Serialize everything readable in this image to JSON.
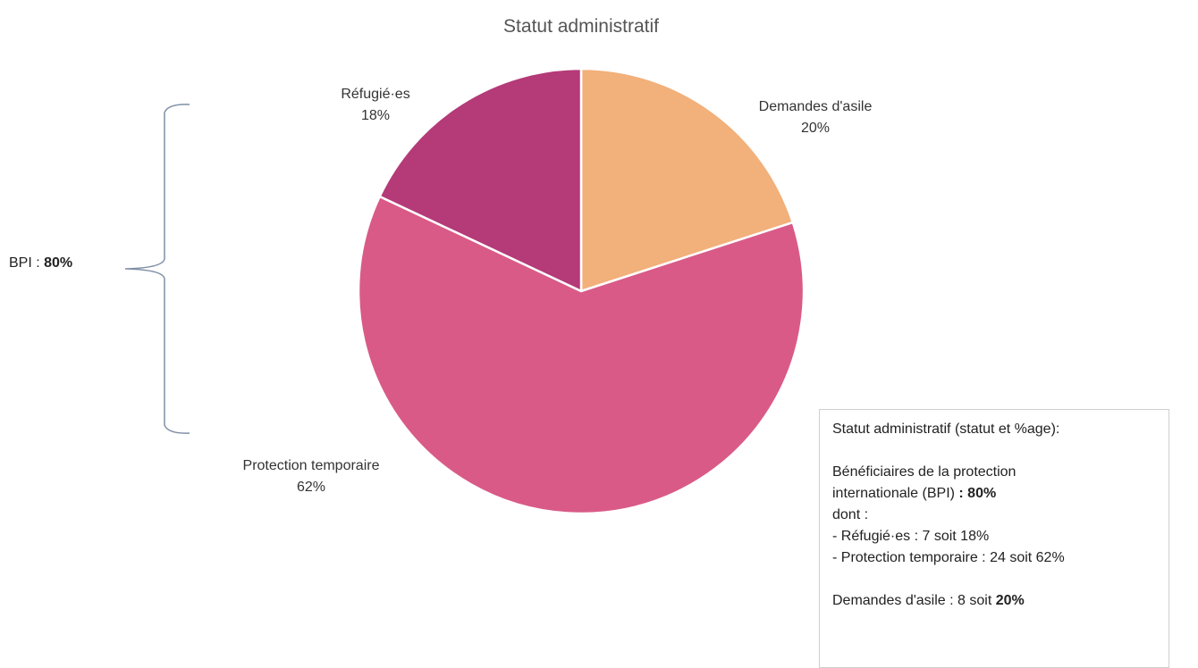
{
  "chart_data": {
    "type": "pie",
    "title": "Statut administratif",
    "slices": [
      {
        "label": "Demandes d'asile",
        "value": 20,
        "value_label": "20%",
        "color": "#F2B07A"
      },
      {
        "label": "Protection temporaire",
        "value": 62,
        "value_label": "62%",
        "color": "#D95A87"
      },
      {
        "label": "Réfugié·es",
        "value": 18,
        "value_label": "18%",
        "color": "#B43A78"
      }
    ],
    "start_angle_deg": 0,
    "direction": "clockwise",
    "slice_border_color": "#ffffff"
  },
  "bracket": {
    "label_prefix": "BPI : ",
    "label_value": "80%",
    "color": "#7f8fa6"
  },
  "info_box": {
    "title": "Statut administratif (statut et %age):",
    "bpi_line1": "Bénéficiaires de la protection",
    "bpi_line2_prefix": "internationale (BPI) ",
    "bpi_line2_value": ": 80%",
    "dont": "dont :",
    "refugies_line": "- Réfugié·es : 7 soit 18%",
    "protection_line": "- Protection temporaire : 24 soit 62%",
    "demandes_prefix": "Demandes d'asile : 8 soit ",
    "demandes_value": "20%"
  }
}
